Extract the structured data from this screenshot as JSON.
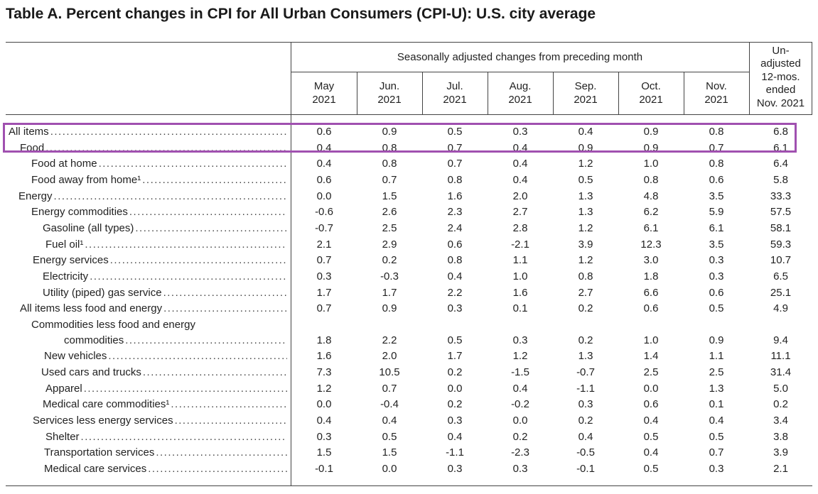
{
  "title": "Table A. Percent changes in CPI for All Urban Consumers (CPI-U): U.S. city average",
  "header": {
    "group_label": "Seasonally adjusted changes from preceding month",
    "unadjusted_label": [
      "Un-",
      "adjusted",
      "12-mos.",
      "ended",
      "Nov. 2021"
    ],
    "months": [
      {
        "month": "May",
        "year": "2021"
      },
      {
        "month": "Jun.",
        "year": "2021"
      },
      {
        "month": "Jul.",
        "year": "2021"
      },
      {
        "month": "Aug.",
        "year": "2021"
      },
      {
        "month": "Sep.",
        "year": "2021"
      },
      {
        "month": "Oct.",
        "year": "2021"
      },
      {
        "month": "Nov.",
        "year": "2021"
      }
    ]
  },
  "rows": [
    {
      "label": "All items",
      "values": [
        "0.6",
        "0.9",
        "0.5",
        "0.3",
        "0.4",
        "0.9",
        "0.8",
        "6.8"
      ]
    },
    {
      "label": "Food",
      "values": [
        "0.4",
        "0.8",
        "0.7",
        "0.4",
        "0.9",
        "0.9",
        "0.7",
        "6.1"
      ]
    },
    {
      "label": "Food at home",
      "values": [
        "0.4",
        "0.8",
        "0.7",
        "0.4",
        "1.2",
        "1.0",
        "0.8",
        "6.4"
      ]
    },
    {
      "label": "Food away from home¹",
      "values": [
        "0.6",
        "0.7",
        "0.8",
        "0.4",
        "0.5",
        "0.8",
        "0.6",
        "5.8"
      ]
    },
    {
      "label": "Energy",
      "values": [
        "0.0",
        "1.5",
        "1.6",
        "2.0",
        "1.3",
        "4.8",
        "3.5",
        "33.3"
      ]
    },
    {
      "label": "Energy commodities",
      "values": [
        "-0.6",
        "2.6",
        "2.3",
        "2.7",
        "1.3",
        "6.2",
        "5.9",
        "57.5"
      ]
    },
    {
      "label": "Gasoline (all types)",
      "values": [
        "-0.7",
        "2.5",
        "2.4",
        "2.8",
        "1.2",
        "6.1",
        "6.1",
        "58.1"
      ]
    },
    {
      "label": "Fuel oil¹",
      "values": [
        "2.1",
        "2.9",
        "0.6",
        "-2.1",
        "3.9",
        "12.3",
        "3.5",
        "59.3"
      ]
    },
    {
      "label": "Energy services",
      "values": [
        "0.7",
        "0.2",
        "0.8",
        "1.1",
        "1.2",
        "3.0",
        "0.3",
        "10.7"
      ]
    },
    {
      "label": "Electricity",
      "values": [
        "0.3",
        "-0.3",
        "0.4",
        "1.0",
        "0.8",
        "1.8",
        "0.3",
        "6.5"
      ]
    },
    {
      "label": "Utility (piped) gas service",
      "values": [
        "1.7",
        "1.7",
        "2.2",
        "1.6",
        "2.7",
        "6.6",
        "0.6",
        "25.1"
      ]
    },
    {
      "label": "All items less food and energy",
      "values": [
        "0.7",
        "0.9",
        "0.3",
        "0.1",
        "0.2",
        "0.6",
        "0.5",
        "4.9"
      ]
    },
    {
      "label": "Commodities less food and energy",
      "label2": "commodities",
      "values": [
        "1.8",
        "2.2",
        "0.5",
        "0.3",
        "0.2",
        "1.0",
        "0.9",
        "9.4"
      ]
    },
    {
      "label": "New vehicles",
      "values": [
        "1.6",
        "2.0",
        "1.7",
        "1.2",
        "1.3",
        "1.4",
        "1.1",
        "11.1"
      ]
    },
    {
      "label": "Used cars and trucks",
      "values": [
        "7.3",
        "10.5",
        "0.2",
        "-1.5",
        "-0.7",
        "2.5",
        "2.5",
        "31.4"
      ]
    },
    {
      "label": "Apparel",
      "values": [
        "1.2",
        "0.7",
        "0.0",
        "0.4",
        "-1.1",
        "0.0",
        "1.3",
        "5.0"
      ]
    },
    {
      "label": "Medical care commodities¹",
      "values": [
        "0.0",
        "-0.4",
        "0.2",
        "-0.2",
        "0.3",
        "0.6",
        "0.1",
        "0.2"
      ]
    },
    {
      "label": "Services less energy services",
      "values": [
        "0.4",
        "0.4",
        "0.3",
        "0.0",
        "0.2",
        "0.4",
        "0.4",
        "3.4"
      ]
    },
    {
      "label": "Shelter",
      "values": [
        "0.3",
        "0.5",
        "0.4",
        "0.2",
        "0.4",
        "0.5",
        "0.5",
        "3.8"
      ]
    },
    {
      "label": "Transportation services",
      "values": [
        "1.5",
        "1.5",
        "-1.1",
        "-2.3",
        "-0.5",
        "0.4",
        "0.7",
        "3.9"
      ]
    },
    {
      "label": "Medical care services",
      "values": [
        "-0.1",
        "0.0",
        "0.3",
        "0.3",
        "-0.1",
        "0.5",
        "0.3",
        "2.1"
      ]
    }
  ]
}
